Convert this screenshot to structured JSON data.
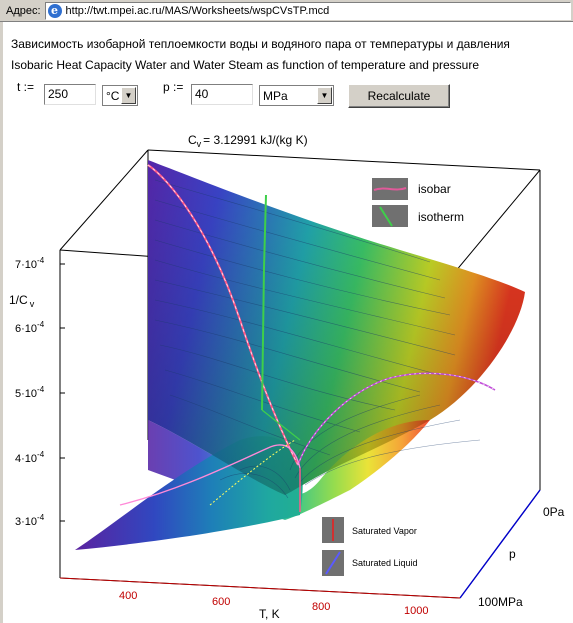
{
  "address_bar": {
    "label": "Адрес:",
    "url": "http://twt.mpei.ac.ru/MAS/Worksheets/wspCVsTP.mcd",
    "icon": "ie-page-icon"
  },
  "header": {
    "title_ru": "Зависимость изобарной теплоемкости воды и водяного пара от температуры и давления",
    "title_en": "Isobaric Heat Capacity Water and Water Steam as function of temperature and pressure"
  },
  "form": {
    "t_label": "t :=",
    "t_value": "250",
    "t_unit": "°C",
    "p_label": "p :=",
    "p_value": "40",
    "p_unit": "MPa",
    "recalc_label": "Recalculate"
  },
  "plot": {
    "result_prefix": "C",
    "result_sub": "v",
    "result_text": "= 3.12991 kJ/(kg K)",
    "z_label": "1/C",
    "z_sub": "v",
    "z_ticks": [
      {
        "base": "7·10",
        "exp": "-4"
      },
      {
        "base": "6·10",
        "exp": "-4"
      },
      {
        "base": "5·10",
        "exp": "-4"
      },
      {
        "base": "4·10",
        "exp": "-4"
      },
      {
        "base": "3·10",
        "exp": "-4"
      }
    ],
    "x_ticks": [
      "400",
      "600",
      "800",
      "1000"
    ],
    "x_label": "T, K",
    "p_axis_label": "p",
    "p_top": "0Pa",
    "p_bottom": "100MPa",
    "legend_top": [
      "isobar",
      "isotherm"
    ],
    "legend_bottom": [
      "Saturated Vapor",
      "Saturated Liquid"
    ],
    "colors": {
      "isobar": "#e05a9a",
      "isotherm": "#3ecf4a",
      "sat_vapor": "#d03030",
      "sat_liquid": "#5a5aff",
      "x_ticks": "#c00000",
      "p_axis": "#0000cc"
    }
  }
}
